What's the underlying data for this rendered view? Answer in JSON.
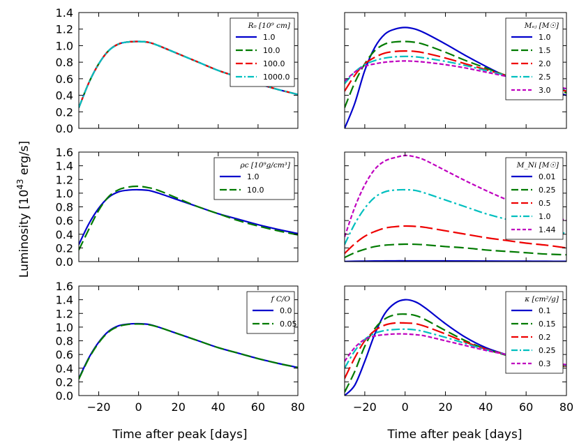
{
  "figure": {
    "ylabel": "Luminosity [10^43 erg/s]",
    "ylabel_main": "Luminosity [10",
    "ylabel_exp": "43",
    "ylabel_unit": " erg/s]",
    "xlabel": "Time after peak [days]"
  },
  "chart_data": [
    {
      "id": "R0",
      "type": "line",
      "legend_title": "R0 [10^9 cm]",
      "legend_title_display": "R₀ [10⁹ cm]",
      "xlim": [
        -30,
        80
      ],
      "ylim": [
        0.0,
        1.4
      ],
      "yticks": [
        "0.0",
        "0.2",
        "0.4",
        "0.6",
        "0.8",
        "1.0",
        "1.2",
        "1.4"
      ],
      "xticks": [
        "−20",
        "0",
        "20",
        "40",
        "60",
        "80"
      ],
      "show_xticklabels": false,
      "x": [
        -30,
        -25,
        -20,
        -15,
        -10,
        -5,
        0,
        5,
        10,
        20,
        30,
        40,
        50,
        60,
        70,
        80
      ],
      "series": [
        {
          "name": "1.0",
          "color": "#0000cc",
          "dash": "solid",
          "values": [
            0.25,
            0.55,
            0.78,
            0.94,
            1.02,
            1.045,
            1.05,
            1.04,
            1.0,
            0.9,
            0.8,
            0.7,
            0.62,
            0.54,
            0.47,
            0.41
          ]
        },
        {
          "name": "10.0",
          "color": "#007a00",
          "dash": "long",
          "values": [
            0.25,
            0.55,
            0.78,
            0.94,
            1.02,
            1.045,
            1.05,
            1.04,
            1.0,
            0.9,
            0.8,
            0.7,
            0.62,
            0.54,
            0.47,
            0.41
          ]
        },
        {
          "name": "100.0",
          "color": "#ee0000",
          "dash": "longer",
          "values": [
            0.25,
            0.55,
            0.78,
            0.94,
            1.02,
            1.045,
            1.05,
            1.04,
            1.0,
            0.9,
            0.8,
            0.7,
            0.62,
            0.54,
            0.47,
            0.41
          ]
        },
        {
          "name": "1000.0",
          "color": "#00bfbf",
          "dash": "dashdot",
          "values": [
            0.25,
            0.55,
            0.78,
            0.94,
            1.02,
            1.045,
            1.05,
            1.04,
            1.0,
            0.9,
            0.8,
            0.7,
            0.62,
            0.54,
            0.47,
            0.41
          ]
        }
      ]
    },
    {
      "id": "Mej",
      "type": "line",
      "legend_title": "M_ej [M_sun]",
      "legend_title_display": "Mₑⱼ [M☉]",
      "xlim": [
        -30,
        80
      ],
      "ylim": [
        0.0,
        1.4
      ],
      "yticks": [],
      "xticks": [
        "−20",
        "0",
        "20",
        "40",
        "60",
        "80"
      ],
      "show_xticklabels": false,
      "x": [
        -30,
        -25,
        -20,
        -15,
        -10,
        -5,
        0,
        5,
        10,
        20,
        30,
        40,
        50,
        60,
        70,
        80
      ],
      "series": [
        {
          "name": "1.0",
          "color": "#0000cc",
          "dash": "solid",
          "values": [
            0.0,
            0.3,
            0.7,
            0.98,
            1.14,
            1.2,
            1.22,
            1.2,
            1.15,
            1.02,
            0.88,
            0.75,
            0.63,
            0.53,
            0.46,
            0.4
          ]
        },
        {
          "name": "1.5",
          "color": "#007a00",
          "dash": "long",
          "values": [
            0.25,
            0.55,
            0.78,
            0.94,
            1.02,
            1.045,
            1.05,
            1.04,
            1.01,
            0.92,
            0.82,
            0.73,
            0.64,
            0.56,
            0.49,
            0.43
          ]
        },
        {
          "name": "2.0",
          "color": "#ee0000",
          "dash": "longer",
          "values": [
            0.45,
            0.64,
            0.78,
            0.86,
            0.91,
            0.93,
            0.935,
            0.93,
            0.91,
            0.85,
            0.78,
            0.71,
            0.64,
            0.57,
            0.51,
            0.45
          ]
        },
        {
          "name": "2.5",
          "color": "#00bfbf",
          "dash": "dashdot",
          "values": [
            0.54,
            0.68,
            0.77,
            0.82,
            0.85,
            0.865,
            0.87,
            0.865,
            0.85,
            0.81,
            0.76,
            0.7,
            0.64,
            0.58,
            0.52,
            0.47
          ]
        },
        {
          "name": "3.0",
          "color": "#bf00bf",
          "dash": "short",
          "values": [
            0.57,
            0.68,
            0.75,
            0.78,
            0.8,
            0.81,
            0.815,
            0.81,
            0.8,
            0.77,
            0.73,
            0.68,
            0.63,
            0.58,
            0.53,
            0.48
          ]
        }
      ]
    },
    {
      "id": "rho",
      "type": "line",
      "legend_title": "rho_c [10^9 g/cm^3]",
      "legend_title_display": "ρc [10⁹g/cm³]",
      "xlim": [
        -30,
        80
      ],
      "ylim": [
        0.0,
        1.6
      ],
      "yticks": [
        "0.0",
        "0.2",
        "0.4",
        "0.6",
        "0.8",
        "1.0",
        "1.2",
        "1.4",
        "1.6"
      ],
      "xticks": [
        "−20",
        "0",
        "20",
        "40",
        "60",
        "80"
      ],
      "show_xticklabels": false,
      "x": [
        -30,
        -25,
        -20,
        -15,
        -10,
        -5,
        0,
        5,
        10,
        20,
        30,
        40,
        50,
        60,
        70,
        80
      ],
      "series": [
        {
          "name": "1.0",
          "color": "#0000cc",
          "dash": "solid",
          "values": [
            0.25,
            0.55,
            0.78,
            0.94,
            1.02,
            1.045,
            1.05,
            1.04,
            1.0,
            0.9,
            0.8,
            0.7,
            0.62,
            0.54,
            0.47,
            0.41
          ]
        },
        {
          "name": "10.0",
          "color": "#007a00",
          "dash": "long",
          "values": [
            0.17,
            0.47,
            0.75,
            0.95,
            1.05,
            1.09,
            1.1,
            1.08,
            1.04,
            0.92,
            0.8,
            0.7,
            0.6,
            0.52,
            0.45,
            0.39
          ]
        }
      ]
    },
    {
      "id": "MNi",
      "type": "line",
      "legend_title": "M_Ni [M_sun]",
      "legend_title_display": "M_Ni [M☉]",
      "xlim": [
        -30,
        80
      ],
      "ylim": [
        0.0,
        1.6
      ],
      "yticks": [],
      "xticks": [
        "−20",
        "0",
        "20",
        "40",
        "60",
        "80"
      ],
      "show_xticklabels": false,
      "x": [
        -30,
        -25,
        -20,
        -15,
        -10,
        -5,
        0,
        5,
        10,
        20,
        30,
        40,
        50,
        60,
        70,
        80
      ],
      "series": [
        {
          "name": "0.01",
          "color": "#0000cc",
          "dash": "solid",
          "values": [
            0.002,
            0.005,
            0.007,
            0.009,
            0.01,
            0.011,
            0.011,
            0.011,
            0.011,
            0.01,
            0.009,
            0.008,
            0.007,
            0.006,
            0.005,
            0.004
          ]
        },
        {
          "name": "0.25",
          "color": "#007a00",
          "dash": "long",
          "values": [
            0.06,
            0.13,
            0.18,
            0.22,
            0.24,
            0.25,
            0.255,
            0.253,
            0.245,
            0.22,
            0.2,
            0.17,
            0.15,
            0.13,
            0.11,
            0.1
          ]
        },
        {
          "name": "0.5",
          "color": "#ee0000",
          "dash": "longer",
          "values": [
            0.12,
            0.26,
            0.37,
            0.44,
            0.49,
            0.51,
            0.52,
            0.515,
            0.5,
            0.45,
            0.4,
            0.35,
            0.31,
            0.27,
            0.24,
            0.2
          ]
        },
        {
          "name": "1.0",
          "color": "#00bfbf",
          "dash": "dashdot",
          "values": [
            0.25,
            0.55,
            0.78,
            0.94,
            1.02,
            1.045,
            1.05,
            1.04,
            1.0,
            0.9,
            0.8,
            0.7,
            0.62,
            0.54,
            0.47,
            0.41
          ]
        },
        {
          "name": "1.44",
          "color": "#bf00bf",
          "dash": "short",
          "values": [
            0.36,
            0.79,
            1.12,
            1.35,
            1.47,
            1.52,
            1.55,
            1.53,
            1.48,
            1.33,
            1.18,
            1.04,
            0.91,
            0.8,
            0.69,
            0.6
          ]
        }
      ]
    },
    {
      "id": "fCO",
      "type": "line",
      "legend_title": "f_C/O",
      "legend_title_display": "f C/O",
      "xlim": [
        -30,
        80
      ],
      "ylim": [
        0.0,
        1.6
      ],
      "yticks": [
        "0.0",
        "0.2",
        "0.4",
        "0.6",
        "0.8",
        "1.0",
        "1.2",
        "1.4",
        "1.6"
      ],
      "xticks": [
        "−20",
        "0",
        "20",
        "40",
        "60",
        "80"
      ],
      "show_xticklabels": true,
      "x": [
        -30,
        -25,
        -20,
        -15,
        -10,
        -5,
        0,
        5,
        10,
        20,
        30,
        40,
        50,
        60,
        70,
        80
      ],
      "series": [
        {
          "name": "0.0",
          "color": "#0000cc",
          "dash": "solid",
          "values": [
            0.25,
            0.55,
            0.78,
            0.94,
            1.02,
            1.045,
            1.05,
            1.04,
            1.0,
            0.9,
            0.8,
            0.7,
            0.62,
            0.54,
            0.47,
            0.41
          ]
        },
        {
          "name": "0.05",
          "color": "#007a00",
          "dash": "long",
          "values": [
            0.24,
            0.54,
            0.77,
            0.93,
            1.01,
            1.04,
            1.045,
            1.035,
            1.0,
            0.9,
            0.8,
            0.7,
            0.62,
            0.54,
            0.47,
            0.41
          ]
        }
      ]
    },
    {
      "id": "kappa",
      "type": "line",
      "legend_title": "kappa [cm^2/g]",
      "legend_title_display": "κ [cm²/g]",
      "xlim": [
        -30,
        80
      ],
      "ylim": [
        0.0,
        1.6
      ],
      "yticks": [],
      "xticks": [
        "−20",
        "0",
        "20",
        "40",
        "60",
        "80"
      ],
      "show_xticklabels": true,
      "x": [
        -30,
        -25,
        -20,
        -15,
        -10,
        -5,
        0,
        5,
        10,
        20,
        30,
        40,
        50,
        60,
        70,
        80
      ],
      "series": [
        {
          "name": "0.1",
          "color": "#0000cc",
          "dash": "solid",
          "values": [
            0.0,
            0.15,
            0.5,
            0.9,
            1.2,
            1.35,
            1.4,
            1.37,
            1.28,
            1.05,
            0.85,
            0.7,
            0.6,
            0.52,
            0.47,
            0.43
          ]
        },
        {
          "name": "0.15",
          "color": "#007a00",
          "dash": "long",
          "values": [
            0.05,
            0.35,
            0.72,
            0.98,
            1.12,
            1.18,
            1.19,
            1.17,
            1.11,
            0.95,
            0.8,
            0.68,
            0.59,
            0.52,
            0.47,
            0.42
          ]
        },
        {
          "name": "0.2",
          "color": "#ee0000",
          "dash": "longer",
          "values": [
            0.25,
            0.55,
            0.8,
            0.95,
            1.03,
            1.06,
            1.06,
            1.05,
            1.01,
            0.9,
            0.78,
            0.68,
            0.6,
            0.53,
            0.48,
            0.43
          ]
        },
        {
          "name": "0.25",
          "color": "#00bfbf",
          "dash": "dashdot",
          "values": [
            0.4,
            0.65,
            0.82,
            0.91,
            0.95,
            0.965,
            0.97,
            0.96,
            0.93,
            0.85,
            0.76,
            0.67,
            0.6,
            0.54,
            0.49,
            0.44
          ]
        },
        {
          "name": "0.3",
          "color": "#bf00bf",
          "dash": "short",
          "values": [
            0.5,
            0.7,
            0.82,
            0.87,
            0.89,
            0.9,
            0.9,
            0.89,
            0.87,
            0.8,
            0.73,
            0.66,
            0.6,
            0.54,
            0.5,
            0.45
          ]
        }
      ]
    }
  ]
}
